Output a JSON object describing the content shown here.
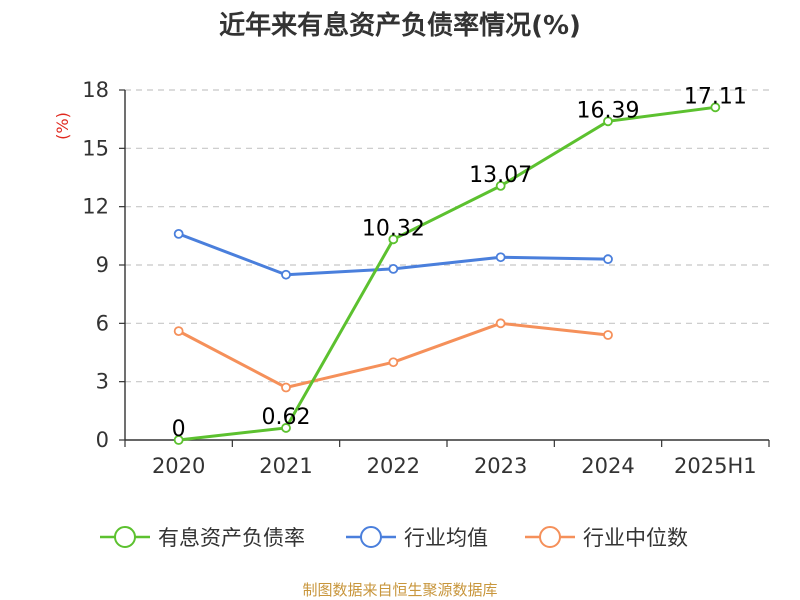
{
  "chart_data": {
    "type": "line",
    "title": "近年来有息资产负债率情况(%)",
    "ylabel": "(%)",
    "xlabel": "",
    "categories": [
      "2020",
      "2021",
      "2022",
      "2023",
      "2024",
      "2025H1"
    ],
    "ylim": [
      0,
      18
    ],
    "yticks": [
      0,
      3,
      6,
      9,
      12,
      15,
      18
    ],
    "grid": "horizontal dashed",
    "legend_position": "bottom",
    "series": [
      {
        "name": "有息资产负债率",
        "color": "#5cc12f",
        "values": [
          0,
          0.62,
          10.32,
          13.07,
          16.39,
          17.11
        ],
        "labels": [
          "0",
          "0.62",
          "10.32",
          "13.07",
          "16.39",
          "17.11"
        ]
      },
      {
        "name": "行业均值",
        "color": "#4a7fdc",
        "values": [
          10.6,
          8.5,
          8.8,
          9.4,
          9.3,
          null
        ]
      },
      {
        "name": "行业中位数",
        "color": "#f5905a",
        "values": [
          5.6,
          2.7,
          4.0,
          6.0,
          5.4,
          null
        ]
      }
    ],
    "source": "制图数据来自恒生聚源数据库"
  }
}
